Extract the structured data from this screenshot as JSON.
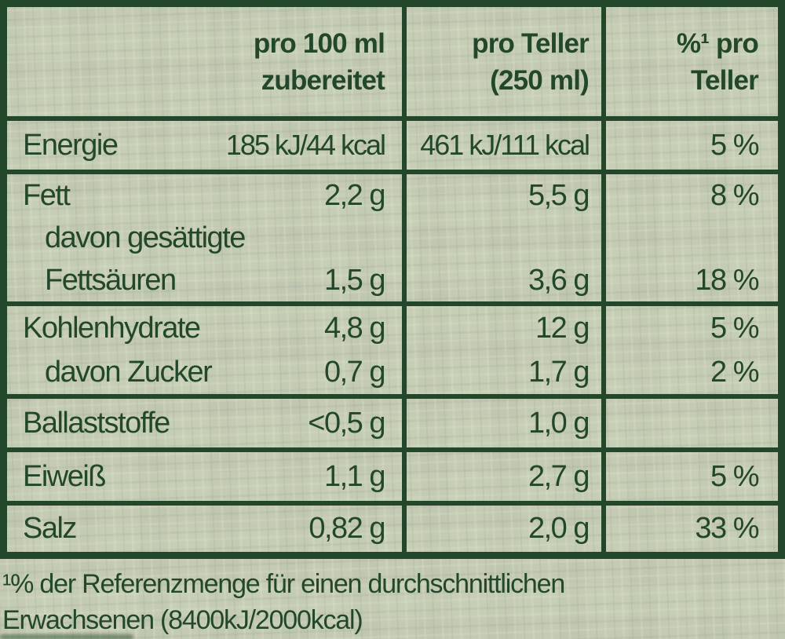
{
  "table": {
    "header": {
      "per100": [
        "pro 100 ml",
        "zubereitet"
      ],
      "teller": [
        "pro Teller",
        "(250 ml)"
      ],
      "pct": [
        "%¹ pro",
        "Teller"
      ]
    },
    "rows": {
      "energie": {
        "label": "Energie",
        "per100": "185 kJ/44 kcal",
        "teller": "461 kJ/111 kcal",
        "pct": "5 %"
      },
      "fett": {
        "label": "Fett",
        "per100": "2,2 g",
        "teller": "5,5 g",
        "pct": "8 %",
        "sub_label_1": "davon gesättigte",
        "sub_label_2": "Fettsäuren",
        "sub_per100": "1,5 g",
        "sub_teller": "3,6 g",
        "sub_pct": "18 %"
      },
      "kohlenhydrate": {
        "label": "Kohlenhydrate",
        "per100": "4,8 g",
        "teller": "12 g",
        "pct": "5 %",
        "sub_label": "davon Zucker",
        "sub_per100": "0,7 g",
        "sub_teller": "1,7 g",
        "sub_pct": "2 %"
      },
      "ballaststoffe": {
        "label": "Ballaststoffe",
        "per100": "<0,5 g",
        "teller": "1,0 g",
        "pct": ""
      },
      "eiweiss": {
        "label": "Eiweiß",
        "per100": "1,1 g",
        "teller": "2,7 g",
        "pct": "5 %"
      },
      "salz": {
        "label": "Salz",
        "per100": "0,82 g",
        "teller": "2,0 g",
        "pct": "33 %"
      }
    },
    "footnote": [
      "¹% der Referenzmenge für einen durchschnittlichen",
      "Erwachsenen (8400kJ/2000kcal)"
    ]
  },
  "colors": {
    "ink": "#22472a",
    "paper": "#c7ceb6"
  }
}
